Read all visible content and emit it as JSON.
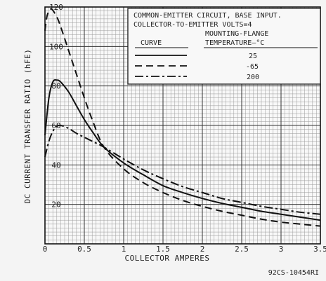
{
  "chart_data": {
    "type": "line",
    "xlabel": "COLLECTOR AMPERES",
    "ylabel": "DC CURRENT TRANSFER RATIO (hFE)",
    "xlim": [
      0,
      3.5
    ],
    "ylim": [
      0,
      120
    ],
    "x_ticks": [
      {
        "value": 0,
        "label": "0"
      },
      {
        "value": 0.5,
        "label": "0.5"
      },
      {
        "value": 1,
        "label": "1"
      },
      {
        "value": 1.5,
        "label": "1.5"
      },
      {
        "value": 2,
        "label": "2"
      },
      {
        "value": 2.5,
        "label": "2.5"
      },
      {
        "value": 3,
        "label": "3"
      },
      {
        "value": 3.5,
        "label": "3.5"
      }
    ],
    "y_ticks": [
      {
        "value": 20,
        "label": "20"
      },
      {
        "value": 40,
        "label": "40"
      },
      {
        "value": 60,
        "label": "60"
      },
      {
        "value": 80,
        "label": "80"
      },
      {
        "value": 100,
        "label": "100"
      },
      {
        "value": 120,
        "label": "120"
      }
    ],
    "grid": true,
    "legend_title_lines": [
      "COMMON-EMITTER CIRCUIT, BASE INPUT.",
      "COLLECTOR-TO-EMITTER VOLTS=4"
    ],
    "legend_col_curve": "CURVE",
    "legend_col_temp_lines": [
      "MOUNTING-FLANGE",
      "TEMPERATURE—°C"
    ],
    "series": [
      {
        "name": "25",
        "style": "solid",
        "x": [
          0,
          0.05,
          0.1,
          0.15,
          0.2,
          0.3,
          0.4,
          0.5,
          0.6,
          0.75,
          1.0,
          1.25,
          1.5,
          1.75,
          2.0,
          2.25,
          2.5,
          2.75,
          3.0,
          3.25,
          3.5
        ],
        "y": [
          55,
          74,
          82,
          83,
          82,
          77,
          70,
          63,
          57,
          49,
          41,
          35,
          29.5,
          26,
          23,
          20.5,
          18.5,
          16.5,
          15,
          13.5,
          12
        ]
      },
      {
        "name": "-65",
        "style": "dashed",
        "x": [
          0,
          0.03,
          0.08,
          0.15,
          0.2,
          0.3,
          0.4,
          0.5,
          0.6,
          0.75,
          1.0,
          1.25,
          1.5,
          1.75,
          2.0,
          2.25,
          2.5,
          2.75,
          3.0,
          3.25,
          3.5
        ],
        "y": [
          108,
          116,
          119,
          115,
          110,
          98,
          86,
          74,
          63,
          49,
          38,
          31,
          26,
          22,
          19,
          16.5,
          14.5,
          12.5,
          11,
          10,
          9
        ]
      },
      {
        "name": "200",
        "style": "dash-dot",
        "x": [
          0,
          0.05,
          0.1,
          0.15,
          0.2,
          0.3,
          0.4,
          0.5,
          0.6,
          0.75,
          1.0,
          1.25,
          1.5,
          1.75,
          2.0,
          2.25,
          2.5,
          2.75,
          3.0,
          3.25,
          3.5
        ],
        "y": [
          44,
          52,
          57,
          59.5,
          60,
          58.5,
          56,
          54,
          52,
          49,
          43,
          37.5,
          33,
          29,
          26,
          23,
          21,
          19,
          17.5,
          16,
          15
        ]
      }
    ],
    "figure_id": "92CS-10454RI"
  }
}
